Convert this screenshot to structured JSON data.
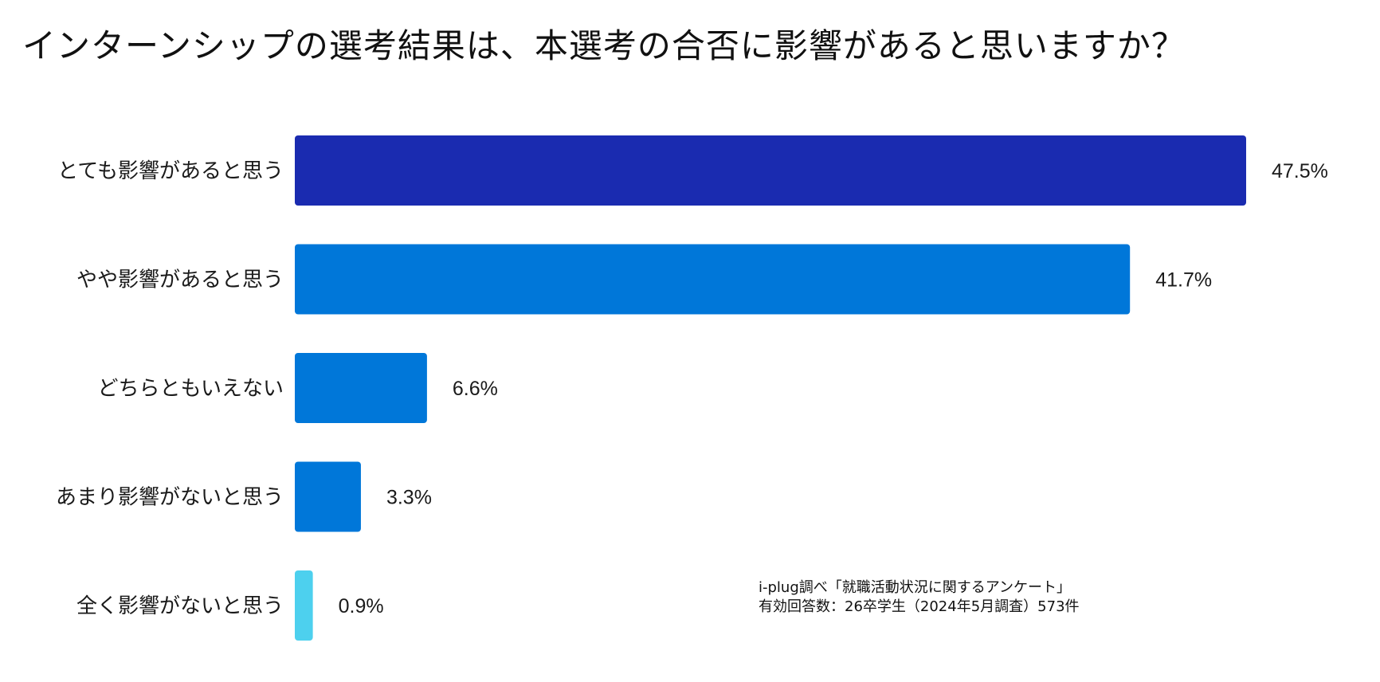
{
  "chart_data": {
    "type": "bar",
    "orientation": "horizontal",
    "title": "インターンシップの選考結果は、本選考の合否に影響があると思いますか？",
    "categories": [
      "とても影響があると思う",
      "やや影響があると思う",
      "どちらともいえない",
      "あまり影響がないと思う",
      "全く影響がないと思う"
    ],
    "values": [
      47.5,
      41.7,
      6.6,
      3.3,
      0.9
    ],
    "value_labels": [
      "47.5%",
      "41.7%",
      "6.6%",
      "3.3%",
      "0.9%"
    ],
    "unit": "%",
    "xlim": [
      0,
      47.5
    ],
    "grid": false,
    "colors": [
      "#1a2bb0",
      "#0077d9",
      "#0077d9",
      "#0077d9",
      "#4dd0ee"
    ],
    "xlabel": "",
    "ylabel": ""
  },
  "source": {
    "line1": "i-plug調べ「就職活動状況に関するアンケート」",
    "line2": "有効回答数：26卒学生（2024年5月調査）573件"
  }
}
